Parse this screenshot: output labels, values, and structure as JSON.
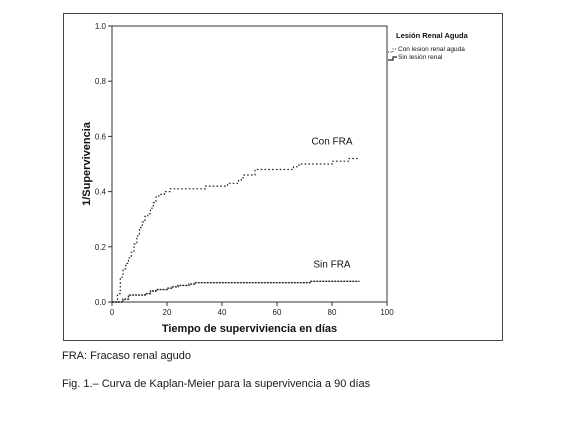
{
  "chart_data": {
    "type": "line",
    "title": "",
    "xlabel": "Tiempo de superviviencia en días",
    "ylabel": "1/Supervivencia",
    "xlim": [
      0,
      100
    ],
    "ylim": [
      0.0,
      1.0
    ],
    "xticks": [
      "0",
      "20",
      "40",
      "60",
      "80",
      "100"
    ],
    "yticks": [
      "0.0",
      "0.2",
      "0.4",
      "0.6",
      "0.8",
      "1.0"
    ],
    "grid": false,
    "legend": {
      "title": "Lesión Renal Aguda",
      "placement": "top-right",
      "entries": [
        "Con lesion renal aguda",
        "Sin lesión renal"
      ]
    },
    "annotations": [
      "Con FRA",
      "Sin FRA"
    ],
    "series": [
      {
        "name": "Con lesion renal aguda",
        "x": [
          0,
          2,
          3,
          4,
          5,
          6,
          7,
          8,
          9,
          10,
          11,
          12,
          13,
          14,
          15,
          16,
          17,
          18,
          19,
          21,
          26,
          30,
          34,
          38,
          42,
          46,
          47,
          48,
          52,
          60,
          66,
          68,
          72,
          80,
          86,
          90
        ],
        "y": [
          0.0,
          0.03,
          0.09,
          0.12,
          0.14,
          0.16,
          0.18,
          0.21,
          0.24,
          0.27,
          0.29,
          0.31,
          0.32,
          0.34,
          0.36,
          0.38,
          0.39,
          0.39,
          0.4,
          0.41,
          0.41,
          0.41,
          0.42,
          0.42,
          0.43,
          0.44,
          0.45,
          0.46,
          0.48,
          0.48,
          0.49,
          0.5,
          0.5,
          0.51,
          0.52,
          0.52
        ]
      },
      {
        "name": "Sin lesión renal",
        "x": [
          0,
          3,
          4,
          6,
          10,
          12,
          14,
          16,
          20,
          22,
          24,
          28,
          30,
          40,
          60,
          70,
          72,
          80,
          90
        ],
        "y": [
          0.0,
          0.0,
          0.01,
          0.025,
          0.025,
          0.03,
          0.04,
          0.045,
          0.05,
          0.055,
          0.06,
          0.065,
          0.07,
          0.07,
          0.07,
          0.07,
          0.075,
          0.075,
          0.075
        ]
      }
    ]
  },
  "captions": {
    "note": "FRA: Fracaso renal agudo",
    "figure": "Fig. 1.–  Curva de Kaplan-Meier para la supervivencia a 90 días"
  }
}
